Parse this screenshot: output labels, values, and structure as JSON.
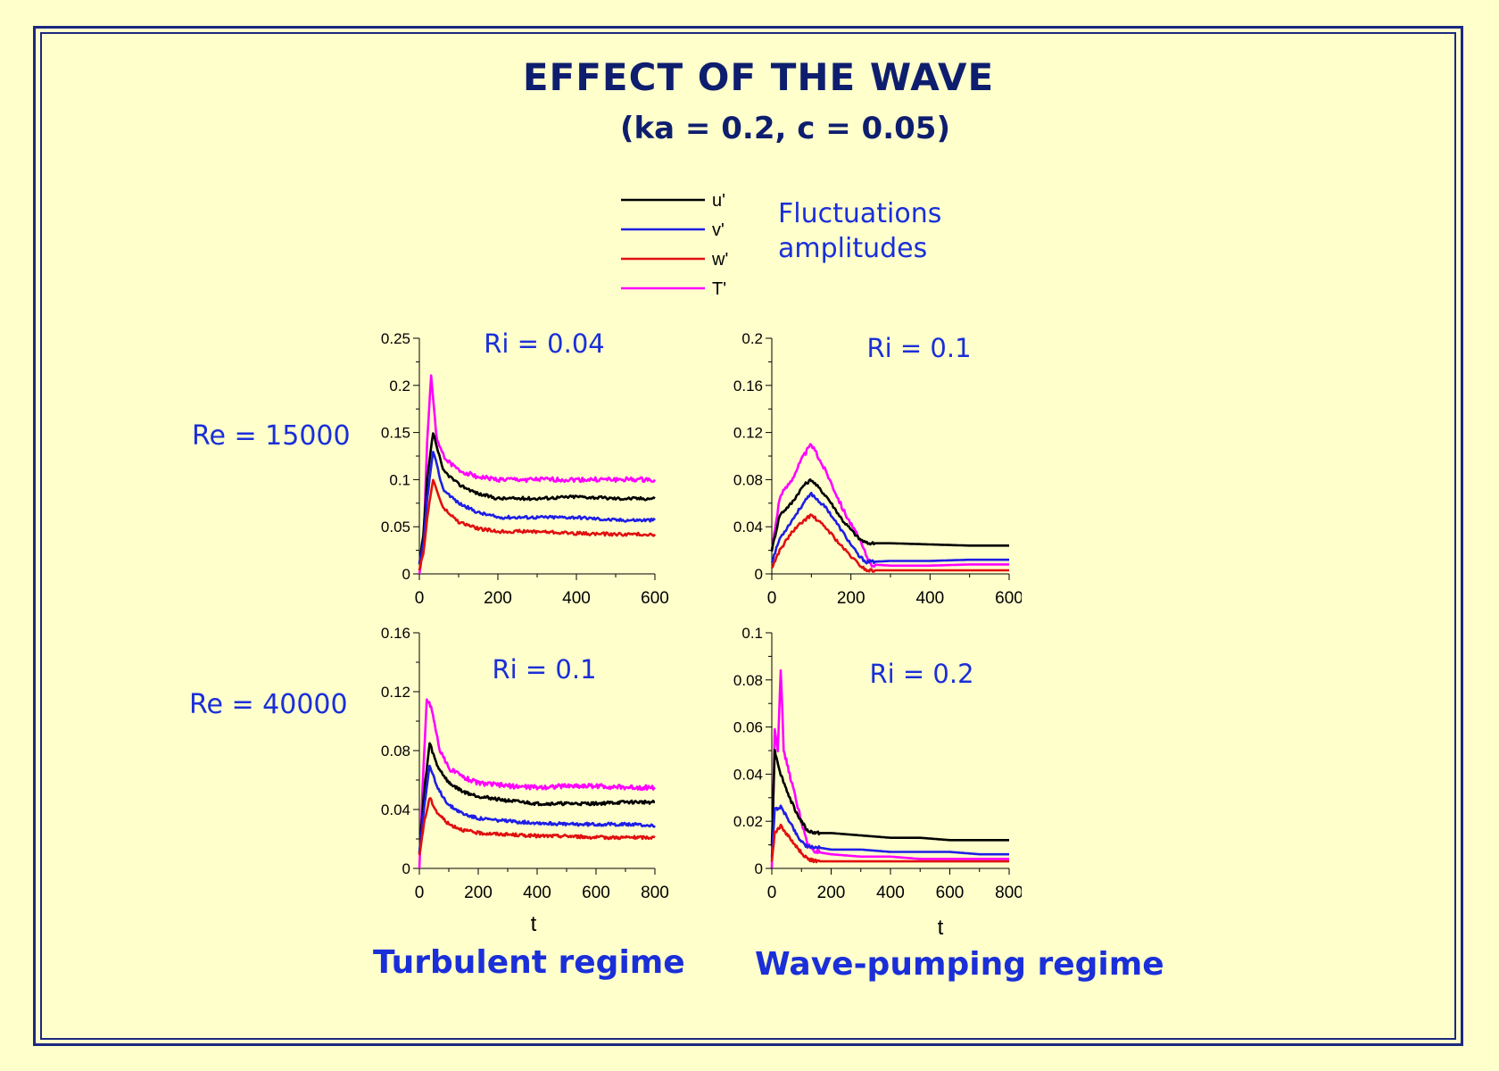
{
  "title": "EFFECT OF THE WAVE",
  "subtitle": "(ka = 0.2, c = 0.05)",
  "legend": {
    "entries": [
      {
        "label": "u'",
        "color": "#000000"
      },
      {
        "label": "v'",
        "color": "#1E1EE6"
      },
      {
        "label": "w'",
        "color": "#E01010"
      },
      {
        "label": "T'",
        "color": "#FF00FF"
      }
    ],
    "caption_line1": "Fluctuations",
    "caption_line2": "amplitudes"
  },
  "row_labels": [
    "Re = 15000",
    "Re = 40000"
  ],
  "x_axis_label": "t",
  "regimes": [
    "Turbulent regime",
    "Wave-pumping regime"
  ],
  "chart_data": [
    {
      "type": "line",
      "title": "Ri = 0.04",
      "xlabel": "",
      "ylabel": "",
      "xlim": [
        0,
        600
      ],
      "ylim": [
        0,
        0.25
      ],
      "xticks": [
        "0",
        "200",
        "400",
        "600"
      ],
      "yticks": [
        "0",
        "0.05",
        "0.1",
        "0.15",
        "0.2",
        "0.25"
      ],
      "series": [
        {
          "name": "u'",
          "x": [
            0,
            10,
            20,
            35,
            60,
            100,
            150,
            200,
            300,
            400,
            500,
            600
          ],
          "values": [
            0.01,
            0.04,
            0.1,
            0.15,
            0.11,
            0.095,
            0.085,
            0.08,
            0.08,
            0.082,
            0.08,
            0.08
          ]
        },
        {
          "name": "v'",
          "x": [
            0,
            10,
            20,
            35,
            60,
            100,
            150,
            200,
            300,
            400,
            500,
            600
          ],
          "values": [
            0.01,
            0.03,
            0.08,
            0.13,
            0.09,
            0.075,
            0.065,
            0.06,
            0.06,
            0.06,
            0.057,
            0.057
          ]
        },
        {
          "name": "w'",
          "x": [
            0,
            10,
            20,
            35,
            60,
            100,
            150,
            200,
            300,
            400,
            500,
            600
          ],
          "values": [
            0.005,
            0.02,
            0.06,
            0.1,
            0.07,
            0.055,
            0.048,
            0.045,
            0.045,
            0.043,
            0.042,
            0.042
          ]
        },
        {
          "name": "T'",
          "x": [
            0,
            10,
            20,
            30,
            45,
            70,
            100,
            150,
            200,
            300,
            400,
            500,
            600
          ],
          "values": [
            0.0,
            0.03,
            0.14,
            0.21,
            0.14,
            0.12,
            0.11,
            0.103,
            0.1,
            0.1,
            0.1,
            0.1,
            0.1
          ]
        }
      ]
    },
    {
      "type": "line",
      "title": "Ri = 0.1",
      "xlabel": "",
      "ylabel": "",
      "xlim": [
        0,
        600
      ],
      "ylim": [
        0,
        0.2
      ],
      "xticks": [
        "0",
        "200",
        "400",
        "600"
      ],
      "yticks": [
        "0",
        "0.04",
        "0.08",
        "0.12",
        "0.16",
        "0.2"
      ],
      "series": [
        {
          "name": "u'",
          "x": [
            0,
            20,
            50,
            80,
            100,
            140,
            180,
            220,
            240,
            300,
            400,
            500,
            600
          ],
          "values": [
            0.02,
            0.05,
            0.06,
            0.075,
            0.08,
            0.065,
            0.045,
            0.03,
            0.026,
            0.026,
            0.025,
            0.024,
            0.024
          ]
        },
        {
          "name": "v'",
          "x": [
            0,
            20,
            50,
            80,
            100,
            140,
            180,
            220,
            240,
            300,
            400,
            500,
            600
          ],
          "values": [
            0.01,
            0.03,
            0.045,
            0.06,
            0.068,
            0.055,
            0.035,
            0.015,
            0.01,
            0.011,
            0.011,
            0.012,
            0.012
          ]
        },
        {
          "name": "w'",
          "x": [
            0,
            20,
            50,
            80,
            100,
            140,
            180,
            220,
            240,
            300,
            400,
            500,
            600
          ],
          "values": [
            0.005,
            0.02,
            0.035,
            0.045,
            0.05,
            0.038,
            0.022,
            0.008,
            0.003,
            0.003,
            0.003,
            0.003,
            0.003
          ]
        },
        {
          "name": "T'",
          "x": [
            0,
            20,
            50,
            80,
            100,
            140,
            180,
            220,
            250,
            300,
            400,
            500,
            600
          ],
          "values": [
            0.02,
            0.065,
            0.08,
            0.1,
            0.11,
            0.085,
            0.055,
            0.03,
            0.008,
            0.007,
            0.007,
            0.008,
            0.008
          ]
        }
      ]
    },
    {
      "type": "line",
      "title": "Ri = 0.1",
      "xlabel": "t",
      "ylabel": "",
      "xlim": [
        0,
        800
      ],
      "ylim": [
        0,
        0.16
      ],
      "xticks": [
        "0",
        "200",
        "400",
        "600",
        "800"
      ],
      "yticks": [
        "0",
        "0.04",
        "0.08",
        "0.12",
        "0.16"
      ],
      "series": [
        {
          "name": "u'",
          "x": [
            0,
            15,
            35,
            60,
            100,
            150,
            200,
            300,
            400,
            500,
            600,
            700,
            800
          ],
          "values": [
            0.01,
            0.05,
            0.085,
            0.07,
            0.058,
            0.052,
            0.049,
            0.046,
            0.044,
            0.044,
            0.044,
            0.045,
            0.045
          ]
        },
        {
          "name": "v'",
          "x": [
            0,
            15,
            35,
            60,
            100,
            150,
            200,
            300,
            400,
            500,
            600,
            700,
            800
          ],
          "values": [
            0.01,
            0.04,
            0.07,
            0.055,
            0.043,
            0.037,
            0.034,
            0.032,
            0.031,
            0.03,
            0.03,
            0.03,
            0.029
          ]
        },
        {
          "name": "w'",
          "x": [
            0,
            15,
            35,
            60,
            100,
            150,
            200,
            300,
            400,
            500,
            600,
            700,
            800
          ],
          "values": [
            0.008,
            0.03,
            0.048,
            0.038,
            0.03,
            0.026,
            0.024,
            0.023,
            0.022,
            0.022,
            0.021,
            0.021,
            0.021
          ]
        },
        {
          "name": "T'",
          "x": [
            0,
            10,
            25,
            40,
            70,
            100,
            150,
            200,
            300,
            400,
            500,
            600,
            700,
            800
          ],
          "values": [
            0.0,
            0.05,
            0.115,
            0.11,
            0.08,
            0.068,
            0.062,
            0.058,
            0.056,
            0.055,
            0.056,
            0.056,
            0.055,
            0.055
          ]
        }
      ]
    },
    {
      "type": "line",
      "title": "Ri = 0.2",
      "xlabel": "t",
      "ylabel": "",
      "xlim": [
        0,
        800
      ],
      "ylim": [
        0,
        0.1
      ],
      "xticks": [
        "0",
        "200",
        "400",
        "600",
        "800"
      ],
      "yticks": [
        "0",
        "0.02",
        "0.04",
        "0.06",
        "0.08",
        "0.1"
      ],
      "series": [
        {
          "name": "u'",
          "x": [
            0,
            10,
            30,
            60,
            90,
            120,
            150,
            200,
            300,
            400,
            500,
            600,
            700,
            800
          ],
          "values": [
            0.01,
            0.05,
            0.04,
            0.03,
            0.022,
            0.016,
            0.015,
            0.015,
            0.014,
            0.013,
            0.013,
            0.012,
            0.012,
            0.012
          ]
        },
        {
          "name": "v'",
          "x": [
            0,
            10,
            30,
            60,
            90,
            120,
            150,
            200,
            300,
            400,
            500,
            600,
            700,
            800
          ],
          "values": [
            0.005,
            0.025,
            0.026,
            0.02,
            0.013,
            0.009,
            0.009,
            0.008,
            0.008,
            0.007,
            0.007,
            0.007,
            0.006,
            0.006
          ]
        },
        {
          "name": "w'",
          "x": [
            0,
            10,
            30,
            60,
            90,
            120,
            150,
            200,
            300,
            400,
            500,
            600,
            700,
            800
          ],
          "values": [
            0.003,
            0.015,
            0.018,
            0.013,
            0.008,
            0.004,
            0.003,
            0.003,
            0.003,
            0.003,
            0.003,
            0.003,
            0.003,
            0.003
          ]
        },
        {
          "name": "T'",
          "x": [
            0,
            10,
            20,
            30,
            40,
            60,
            90,
            120,
            150,
            200,
            300,
            400,
            500,
            600,
            700,
            800
          ],
          "values": [
            0.0,
            0.06,
            0.05,
            0.085,
            0.05,
            0.04,
            0.025,
            0.01,
            0.007,
            0.006,
            0.005,
            0.005,
            0.004,
            0.004,
            0.004,
            0.004
          ]
        }
      ]
    }
  ]
}
